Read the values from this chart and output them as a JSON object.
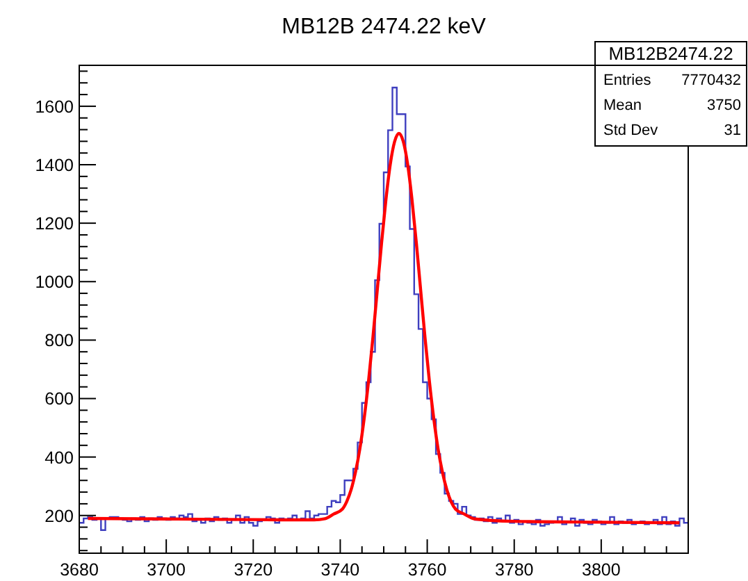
{
  "chart_data": {
    "type": "histogram",
    "title": "MB12B 2474.22 keV",
    "annotations": [
      "MB12B2474.22",
      "Entries 7770432",
      "Mean 3750",
      "Std Dev 31"
    ],
    "bins": [
      3680,
      3681,
      3682,
      3683,
      3684,
      3685,
      3686,
      3687,
      3688,
      3689,
      3690,
      3691,
      3692,
      3693,
      3694,
      3695,
      3696,
      3697,
      3698,
      3699,
      3700,
      3701,
      3702,
      3703,
      3704,
      3705,
      3706,
      3707,
      3708,
      3709,
      3710,
      3711,
      3712,
      3713,
      3714,
      3715,
      3716,
      3717,
      3718,
      3719,
      3720,
      3721,
      3722,
      3723,
      3724,
      3725,
      3726,
      3727,
      3728,
      3729,
      3730,
      3731,
      3732,
      3733,
      3734,
      3735,
      3736,
      3737,
      3738,
      3739,
      3740,
      3741,
      3742,
      3743,
      3744,
      3745,
      3746,
      3747,
      3748,
      3749,
      3750,
      3751,
      3752,
      3753,
      3754,
      3755,
      3756,
      3757,
      3758,
      3759,
      3760,
      3761,
      3762,
      3763,
      3764,
      3765,
      3766,
      3767,
      3768,
      3769,
      3770,
      3771,
      3772,
      3773,
      3774,
      3775,
      3776,
      3777,
      3778,
      3779,
      3780,
      3781,
      3782,
      3783,
      3784,
      3785,
      3786,
      3787,
      3788,
      3789,
      3790,
      3791,
      3792,
      3793,
      3794,
      3795,
      3796,
      3797,
      3798,
      3799,
      3800,
      3801,
      3802,
      3803,
      3804,
      3805,
      3806,
      3807,
      3808,
      3809,
      3810,
      3811,
      3812,
      3813,
      3814,
      3815,
      3816,
      3817,
      3818,
      3819,
      3820
    ],
    "values": [
      175,
      190,
      195,
      185,
      190,
      150,
      190,
      195,
      195,
      190,
      185,
      180,
      190,
      185,
      195,
      180,
      190,
      185,
      195,
      190,
      185,
      195,
      190,
      200,
      195,
      205,
      180,
      185,
      175,
      190,
      180,
      195,
      185,
      190,
      175,
      185,
      200,
      175,
      195,
      175,
      165,
      180,
      185,
      195,
      190,
      175,
      190,
      185,
      190,
      200,
      185,
      190,
      215,
      190,
      200,
      205,
      205,
      230,
      250,
      245,
      270,
      320,
      320,
      360,
      450,
      585,
      656,
      760,
      1005,
      1198,
      1374,
      1518,
      1664,
      1573,
      1573,
      1394,
      1180,
      957,
      838,
      656,
      600,
      529,
      410,
      346,
      275,
      250,
      240,
      205,
      230,
      200,
      195,
      185,
      190,
      180,
      195,
      175,
      190,
      180,
      200,
      175,
      185,
      170,
      180,
      175,
      170,
      185,
      165,
      170,
      175,
      180,
      195,
      170,
      180,
      190,
      165,
      185,
      175,
      170,
      185,
      180,
      170,
      175,
      195,
      170,
      180,
      175,
      185,
      170,
      175,
      180,
      170,
      175,
      185,
      170,
      195,
      170,
      180,
      165,
      190,
      175
    ],
    "color": "#3f3fbf",
    "series": [
      {
        "type": "line",
        "color": "#ff0000",
        "x": [
          3682,
          3700,
          3720,
          3730,
          3734,
          3736.5,
          3738.5,
          3740.5,
          3741.5,
          3742.5,
          3743.5,
          3744.5,
          3745.5,
          3746.5,
          3747.5,
          3748.5,
          3749.5,
          3750.5,
          3751.5,
          3752.5,
          3753.5,
          3754.5,
          3755.5,
          3756.5,
          3757.5,
          3758.5,
          3759.5,
          3760.5,
          3761.5,
          3762.5,
          3763.5,
          3764.5,
          3766.5,
          3768.5,
          3771,
          3780,
          3800,
          3818
        ],
        "values": [
          190,
          188,
          186,
          185,
          185,
          189,
          205,
          222,
          248,
          288,
          348,
          427,
          532,
          659,
          807,
          969,
          1132,
          1280,
          1401,
          1479,
          1507,
          1479,
          1401,
          1280,
          1132,
          969,
          807,
          659,
          532,
          427,
          348,
          288,
          222,
          205,
          188,
          180,
          177,
          175
        ]
      }
    ],
    "xlim": [
      3680,
      3820
    ],
    "xticks": [
      3680,
      {
        "value": 3685,
        "label": null
      },
      {
        "value": 3690,
        "label": null
      },
      {
        "value": 3695,
        "label": null
      },
      3700,
      {
        "value": 3705,
        "label": null
      },
      {
        "value": 3710,
        "label": null
      },
      {
        "value": 3715,
        "label": null
      },
      3720,
      {
        "value": 3725,
        "label": null
      },
      {
        "value": 3730,
        "label": null
      },
      {
        "value": 3735,
        "label": null
      },
      3740,
      {
        "value": 3745,
        "label": null
      },
      {
        "value": 3750,
        "label": null
      },
      {
        "value": 3755,
        "label": null
      },
      3760,
      {
        "value": 3765,
        "label": null
      },
      {
        "value": 3770,
        "label": null
      },
      {
        "value": 3775,
        "label": null
      },
      3780,
      {
        "value": 3785,
        "label": null
      },
      {
        "value": 3790,
        "label": null
      },
      {
        "value": 3795,
        "label": null
      },
      3800,
      {
        "value": 3805,
        "label": null
      },
      {
        "value": 3810,
        "label": null
      },
      {
        "value": 3815,
        "label": null
      }
    ],
    "ylim": [
      71,
      1740
    ],
    "yticks": [
      {
        "value": 80,
        "label": null
      },
      {
        "value": 120,
        "label": null
      },
      {
        "value": 160,
        "label": null
      },
      200,
      {
        "value": 240,
        "label": null
      },
      {
        "value": 280,
        "label": null
      },
      {
        "value": 320,
        "label": null
      },
      {
        "value": 360,
        "label": null
      },
      400,
      {
        "value": 440,
        "label": null
      },
      {
        "value": 480,
        "label": null
      },
      {
        "value": 520,
        "label": null
      },
      {
        "value": 560,
        "label": null
      },
      600,
      {
        "value": 640,
        "label": null
      },
      {
        "value": 680,
        "label": null
      },
      {
        "value": 720,
        "label": null
      },
      {
        "value": 760,
        "label": null
      },
      800,
      {
        "value": 840,
        "label": null
      },
      {
        "value": 880,
        "label": null
      },
      {
        "value": 920,
        "label": null
      },
      {
        "value": 960,
        "label": null
      },
      1000,
      {
        "value": 1040,
        "label": null
      },
      {
        "value": 1080,
        "label": null
      },
      {
        "value": 1120,
        "label": null
      },
      {
        "value": 1160,
        "label": null
      },
      1200,
      {
        "value": 1240,
        "label": null
      },
      {
        "value": 1280,
        "label": null
      },
      {
        "value": 1320,
        "label": null
      },
      {
        "value": 1360,
        "label": null
      },
      1400,
      {
        "value": 1440,
        "label": null
      },
      {
        "value": 1480,
        "label": null
      },
      {
        "value": 1520,
        "label": null
      },
      {
        "value": 1560,
        "label": null
      },
      1600,
      {
        "value": 1640,
        "label": null
      },
      {
        "value": 1680,
        "label": null
      },
      {
        "value": 1720,
        "label": null
      }
    ]
  }
}
